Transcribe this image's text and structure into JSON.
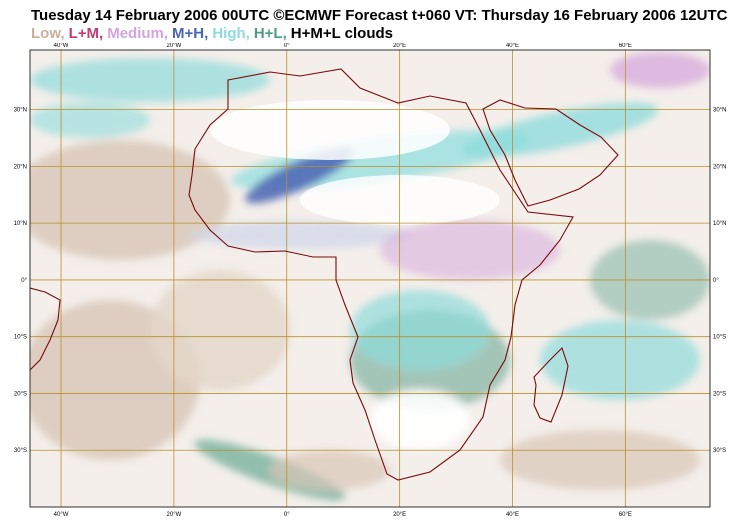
{
  "map": {
    "title": "Tuesday 14 February 2006 00UTC ©ECMWF Forecast t+060 VT: Thursday 16 February 2006 12UTC",
    "legend": [
      {
        "label": "Low,",
        "color": "#c8b09a"
      },
      {
        "label": "L+M,",
        "color": "#c43c6c"
      },
      {
        "label": "Medium,",
        "color": "#d4a4dc"
      },
      {
        "label": "M+H,",
        "color": "#4a64b4"
      },
      {
        "label": "High,",
        "color": "#8edcdc"
      },
      {
        "label": "H+L,",
        "color": "#4e9c84"
      },
      {
        "label": "H+M+L clouds",
        "color": "#000000"
      }
    ],
    "xlim": [
      -45.5,
      75
    ],
    "ylim": [
      -40,
      40.5
    ],
    "xticks": [
      {
        "value": -40,
        "label": "40°W"
      },
      {
        "value": -20,
        "label": "20°W"
      },
      {
        "value": 0,
        "label": "0°"
      },
      {
        "value": 20,
        "label": "20°E"
      },
      {
        "value": 40,
        "label": "40°E"
      },
      {
        "value": 60,
        "label": "60°E"
      }
    ],
    "yticks": [
      {
        "value": 30,
        "label": "30°N"
      },
      {
        "value": 20,
        "label": "20°N"
      },
      {
        "value": 10,
        "label": "10°N"
      },
      {
        "value": 0,
        "label": "0°"
      },
      {
        "value": -10,
        "label": "10°S"
      },
      {
        "value": -20,
        "label": "20°S"
      },
      {
        "value": -30,
        "label": "30°S"
      }
    ],
    "grid_color": "#b8902c",
    "coast_color": "#7a0a0a"
  }
}
